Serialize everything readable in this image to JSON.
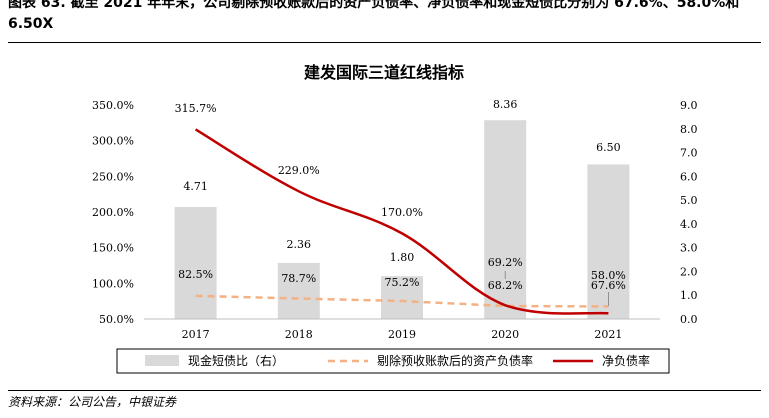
{
  "header": {
    "caption": "图表 63. 截至 2021 年年末，公司剔除预收账款后的资产负债率、净负债率和现金短债比分别为 67.6%、58.0%和 6.50X"
  },
  "source": "资料来源：公司公告，中银证券",
  "colors": {
    "bar": "#d9d9d9",
    "net_debt_line": "#c00000",
    "asset_liability_line": "#f4b183",
    "rule": "#000000"
  },
  "chart_data": {
    "type": "bar",
    "title": "建发国际三道红线指标",
    "categories": [
      "2017",
      "2018",
      "2019",
      "2020",
      "2021"
    ],
    "left_axis": {
      "ticks": [
        "50.0%",
        "100.0%",
        "150.0%",
        "200.0%",
        "250.0%",
        "300.0%",
        "350.0%"
      ],
      "ylim": [
        50,
        350
      ]
    },
    "right_axis": {
      "ticks": [
        "0.0",
        "1.0",
        "2.0",
        "3.0",
        "4.0",
        "5.0",
        "6.0",
        "7.0",
        "8.0",
        "9.0"
      ],
      "ylim": [
        0,
        9
      ]
    },
    "series": [
      {
        "name": "现金短债比（右）",
        "type": "bar",
        "axis": "right",
        "values": [
          4.71,
          2.36,
          1.8,
          8.36,
          6.5
        ],
        "labels": [
          "4.71",
          "2.36",
          "1.80",
          "8.36",
          "6.50"
        ]
      },
      {
        "name": "剔除预收账款后的资产负债率",
        "type": "line",
        "style": "dashed",
        "axis": "left",
        "values": [
          82.5,
          78.7,
          75.2,
          68.2,
          67.6
        ],
        "labels": [
          "82.5%",
          "78.7%",
          "75.2%",
          "68.2%",
          "67.6%"
        ]
      },
      {
        "name": "净负债率",
        "type": "line",
        "style": "solid",
        "axis": "left",
        "values": [
          315.7,
          229.0,
          170.0,
          69.2,
          58.0
        ],
        "labels": [
          "315.7%",
          "229.0%",
          "170.0%",
          "69.2%",
          "58.0%"
        ]
      }
    ],
    "legend_position": "bottom",
    "grid": false
  }
}
